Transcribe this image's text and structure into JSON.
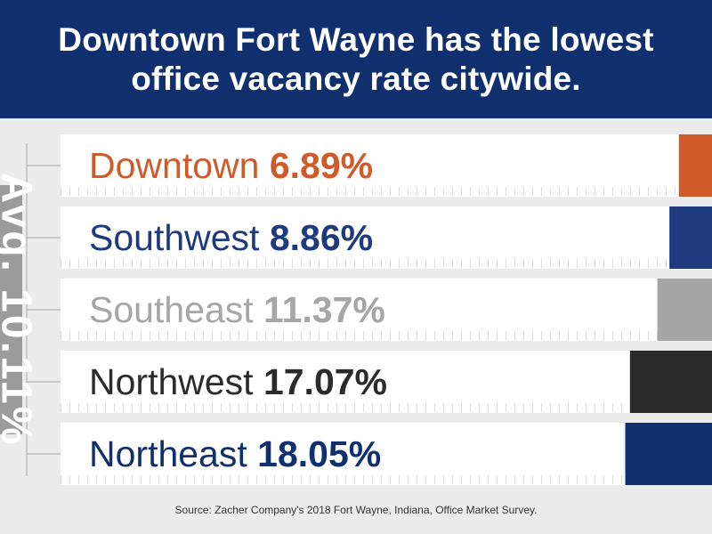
{
  "header": {
    "title": "Downtown Fort Wayne has the lowest office vacancy rate citywide."
  },
  "axis_label": "Avg. 10.11%",
  "source": "Source: Zacher Company's 2018 Fort Wayne, Indiana, Office Market Survey.",
  "colors": {
    "header_bg": "#0f2f6f",
    "downtown": "#d05a2a",
    "southwest": "#1d3a7e",
    "southeast": "#a6a6a6",
    "northwest": "#2b2b2b",
    "northeast": "#0f2f6f",
    "axis_box": "#9b9b9b"
  },
  "chart_data": {
    "type": "bar",
    "orientation": "horizontal",
    "categories": [
      "Downtown",
      "Southwest",
      "Southeast",
      "Northwest",
      "Northeast"
    ],
    "values": [
      6.89,
      8.86,
      11.37,
      17.07,
      18.05
    ],
    "value_labels": [
      "6.89%",
      "8.86%",
      "11.37%",
      "17.07%",
      "18.05%"
    ],
    "unit": "%",
    "series_colors": [
      "#d05a2a",
      "#1d3a7e",
      "#a6a6a6",
      "#2b2b2b",
      "#0f2f6f"
    ],
    "title": "Downtown Fort Wayne has the lowest office vacancy rate citywide.",
    "grid": false
  }
}
